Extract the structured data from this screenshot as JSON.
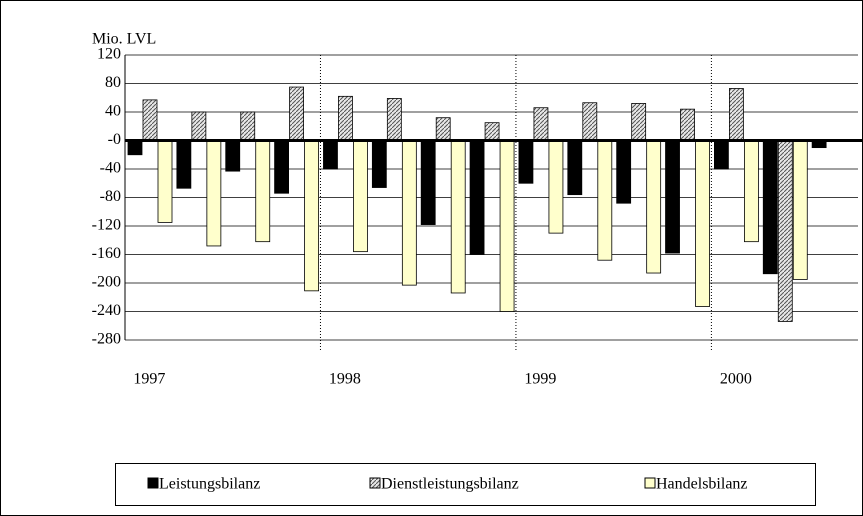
{
  "chart_data": {
    "type": "bar",
    "y_label": "Mio. LVL",
    "categories": [
      "1997",
      null,
      null,
      null,
      "1998",
      null,
      null,
      null,
      "1999",
      null,
      null,
      null,
      "2000",
      null,
      null
    ],
    "series": [
      {
        "name": "Leistungsbilanz",
        "color": "#000000",
        "values": [
          -20,
          -67,
          -43,
          -74,
          -40,
          -66,
          -118,
          -160,
          -60,
          -76,
          -88,
          -158,
          -40,
          -187,
          -10
        ]
      },
      {
        "name": "Dienstleistungsbilanz",
        "color": "#a0a0a0",
        "pattern": "hatched",
        "values": [
          57,
          40,
          40,
          75,
          62,
          59,
          32,
          25,
          46,
          53,
          52,
          44,
          73,
          -254,
          null
        ]
      },
      {
        "name": "Handelsbilanz",
        "color": "#ffffcc",
        "values": [
          -115,
          -148,
          -142,
          -211,
          -156,
          -203,
          -214,
          -240,
          -130,
          -168,
          -186,
          -233,
          -142,
          -195,
          null
        ]
      }
    ],
    "ylim": [
      -280,
      120
    ],
    "yticks": [
      -280,
      -240,
      -200,
      -160,
      -120,
      -80,
      -40,
      {
        "value": 0,
        "label": "-0"
      },
      40,
      80,
      120
    ],
    "grid": true,
    "legend": "bottom"
  }
}
